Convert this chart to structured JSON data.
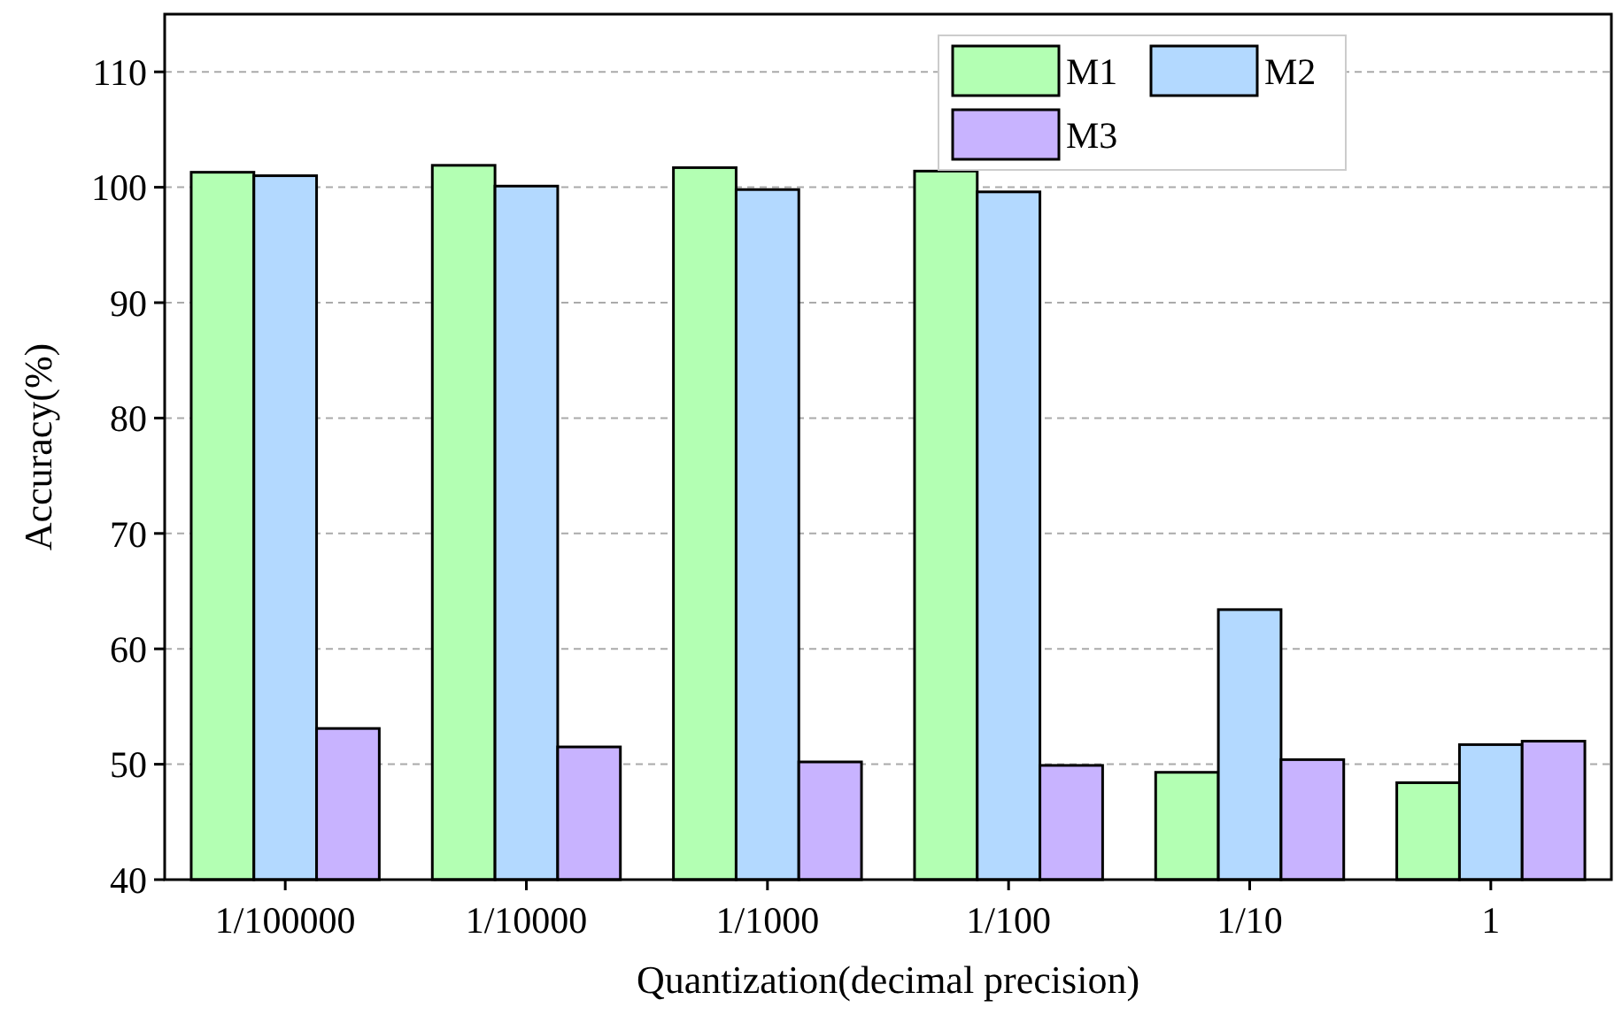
{
  "chart_data": {
    "type": "bar",
    "xlabel": "Quantization(decimal precision)",
    "ylabel": "Accuracy(%)",
    "categories": [
      "1/100000",
      "1/10000",
      "1/1000",
      "1/100",
      "1/10",
      "1"
    ],
    "series": [
      {
        "name": "M1",
        "color": "#b3ffb3",
        "values": [
          101.3,
          101.9,
          101.7,
          101.4,
          49.3,
          48.4
        ]
      },
      {
        "name": "M2",
        "color": "#b3d9ff",
        "values": [
          101.0,
          100.1,
          99.8,
          99.6,
          63.4,
          51.7
        ]
      },
      {
        "name": "M3",
        "color": "#c8b3ff",
        "values": [
          53.1,
          51.5,
          50.2,
          49.9,
          50.4,
          52.0
        ]
      }
    ],
    "ylim": [
      40,
      115
    ],
    "yticks": [
      40,
      50,
      60,
      70,
      80,
      90,
      100,
      110
    ],
    "grid": "y",
    "legend": "top right"
  }
}
